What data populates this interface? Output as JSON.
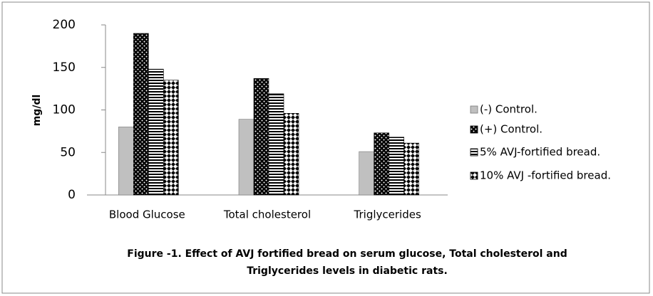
{
  "chart_data": {
    "type": "bar",
    "title": [
      "Figure -1. Effect of AVJ fortified bread on serum glucose, Total cholesterol and",
      "Triglycerides levels in diabetic rats."
    ],
    "y_label": "mg/dl",
    "categories": [
      "Blood Glucose",
      "Total cholesterol",
      "Triglycerides"
    ],
    "series": [
      {
        "name": "(-) Control.",
        "color": "#c0c0c0",
        "pattern": "solid",
        "values": [
          80,
          89,
          51
        ]
      },
      {
        "name": "(+) Control.",
        "color": "#000000",
        "pattern": "dots",
        "values": [
          190,
          137,
          73
        ]
      },
      {
        "name": "5% AVJ-fortified bread.",
        "color": "#000000",
        "pattern": "hlines",
        "values": [
          148,
          119,
          68
        ]
      },
      {
        "name": "10% AVJ -fortified bread.",
        "color": "#000000",
        "pattern": "diamonds",
        "values": [
          135,
          96,
          61
        ]
      }
    ],
    "ylim": [
      0,
      200
    ],
    "yticks": [
      0,
      50,
      100,
      150,
      200
    ],
    "grid": false,
    "legend": "right"
  }
}
